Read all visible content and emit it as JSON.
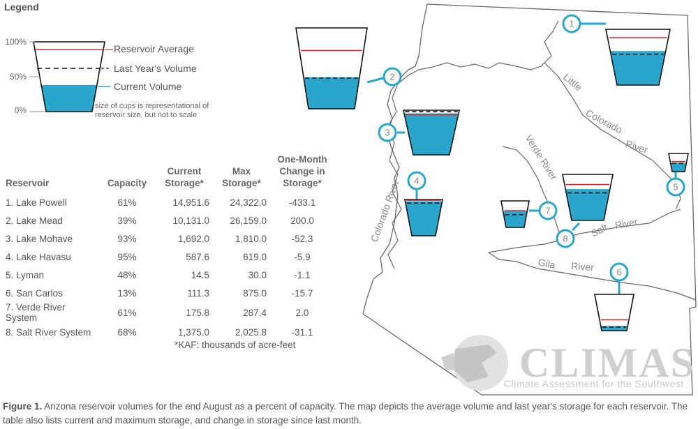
{
  "legend": {
    "title": "Legend",
    "pct_100": "100%",
    "pct_50": "50%",
    "pct_0": "0%",
    "reservoir_average": "Reservoir Average",
    "last_years_volume": "Last Year's Volume",
    "current_volume": "Current Volume",
    "note": "size of cups is representational of reservoir size, but not to scale"
  },
  "table": {
    "headers": {
      "reservoir": "Reservoir",
      "capacity": "Capacity",
      "current_storage": "Current Storage*",
      "max_storage": "Max Storage*",
      "change": "One-Month Change in Storage*"
    },
    "rows": [
      {
        "name": "1. Lake Powell",
        "capacity": "61%",
        "current": "14,951.6",
        "max": "24,322.0",
        "change": "-433.1"
      },
      {
        "name": "2. Lake Mead",
        "capacity": "39%",
        "current": "10,131.0",
        "max": "26,159.0",
        "change": "200.0"
      },
      {
        "name": "3. Lake Mohave",
        "capacity": "93%",
        "current": "1,692.0",
        "max": "1,810.0",
        "change": "-52.3"
      },
      {
        "name": "4. Lake Havasu",
        "capacity": "95%",
        "current": "587.6",
        "max": "619.0",
        "change": "-5.9"
      },
      {
        "name": "5. Lyman",
        "capacity": "48%",
        "current": "14.5",
        "max": "30.0",
        "change": "-1.1"
      },
      {
        "name": "6. San Carlos",
        "capacity": "13%",
        "current": "111.3",
        "max": "875.0",
        "change": "-15.7"
      },
      {
        "name": "7. Verde River System",
        "capacity": "61%",
        "current": "175.8",
        "max": "287.4",
        "change": "2.0"
      },
      {
        "name": "8. Salt River System",
        "capacity": "68%",
        "current": "1,375.0",
        "max": "2,025.8",
        "change": "-31.1"
      }
    ],
    "footnote": "*KAF: thousands of acre-feet"
  },
  "map": {
    "rivers": {
      "little": "Little",
      "colorado_upper": "Colorado",
      "river_upper": "River",
      "verde": "Verde River",
      "colorado_side": "Colorado River",
      "salt": "Salt",
      "salt_river": "River",
      "gila": "Gila",
      "gila_river": "River"
    },
    "badges": [
      "1",
      "2",
      "3",
      "4",
      "5",
      "6",
      "7",
      "8"
    ],
    "reservoirs": [
      {
        "id": "1",
        "current": 0.61,
        "last_year": 0.55,
        "average": 0.85
      },
      {
        "id": "2",
        "current": 0.39,
        "last_year": 0.38,
        "average": 0.72
      },
      {
        "id": "3",
        "current": 0.93,
        "last_year": 0.97,
        "average": 0.9
      },
      {
        "id": "4",
        "current": 0.95,
        "last_year": 0.9,
        "average": 0.98
      },
      {
        "id": "5",
        "current": 0.48,
        "last_year": 0.45,
        "average": 0.55
      },
      {
        "id": "6",
        "current": 0.13,
        "last_year": 0.1,
        "average": 0.3
      },
      {
        "id": "7",
        "current": 0.61,
        "last_year": 0.48,
        "average": 0.63
      },
      {
        "id": "8",
        "current": 0.68,
        "last_year": 0.6,
        "average": 0.78
      }
    ]
  },
  "logo": {
    "name": "CLIMAS",
    "subtitle": "Climate Assessment for the Southwest"
  },
  "caption": {
    "label": "Figure 1.",
    "text": " Arizona reservoir volumes for the end August as a percent of capacity. The map depicts the average volume and last year's storage for each reservoir. The table also lists current and maximum storage, and change in storage since last month."
  },
  "colors": {
    "water": "#2aa6cc",
    "average": "#d9272e",
    "last_year": "#111111",
    "badge": "#2aa6cc",
    "outline": "#666666"
  }
}
